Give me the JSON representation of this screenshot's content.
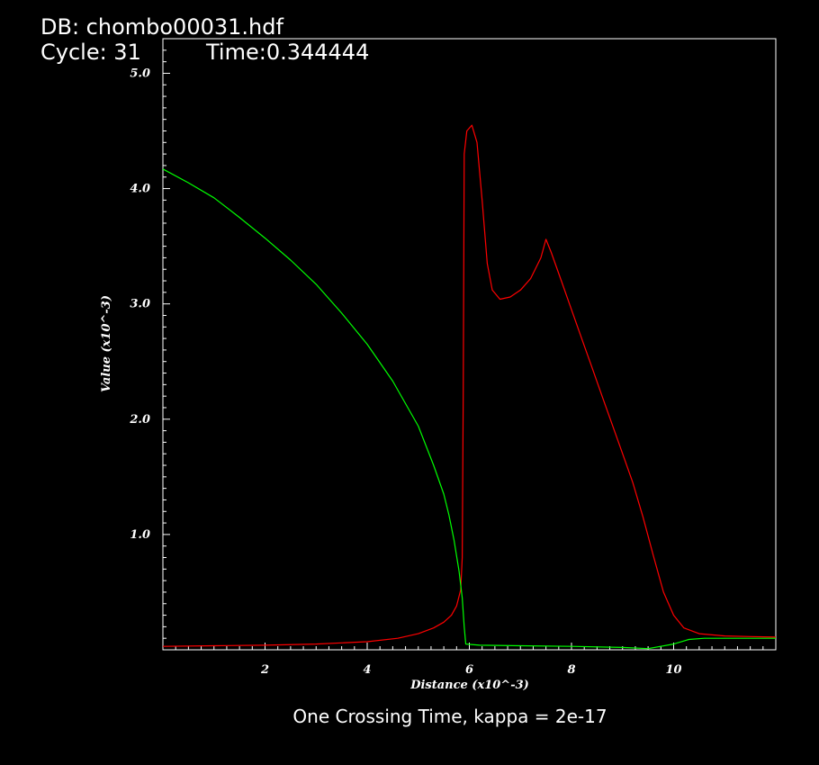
{
  "header": {
    "db_label": "DB: chombo00031.hdf",
    "cycle_label": "Cycle: 31",
    "time_label": "Time:0.344444"
  },
  "caption": "One Crossing Time, kappa = 2e-17",
  "colors": {
    "background": "#000000",
    "axes": "#ffffff",
    "series_red": "#ff0000",
    "series_green": "#00ff00"
  },
  "chart_data": {
    "type": "line",
    "title": "",
    "xlabel": "Distance (x10^-3)",
    "ylabel": "Value (x10^-3)",
    "xlim": [
      0,
      12
    ],
    "ylim": [
      0,
      5.3
    ],
    "x_ticks": [
      2,
      4,
      6,
      8,
      10
    ],
    "x_tick_labels": [
      "2",
      "4",
      "6",
      "8",
      "10"
    ],
    "y_ticks": [
      1.0,
      2.0,
      3.0,
      4.0,
      5.0
    ],
    "y_tick_labels": [
      "1.0",
      "2.0",
      "3.0",
      "4.0",
      "5.0"
    ],
    "grid": false,
    "legend": "none",
    "series": [
      {
        "color": "#ff0000",
        "points": [
          [
            0.0,
            0.03
          ],
          [
            1.0,
            0.035
          ],
          [
            2.0,
            0.04
          ],
          [
            3.0,
            0.05
          ],
          [
            4.0,
            0.07
          ],
          [
            4.6,
            0.1
          ],
          [
            5.0,
            0.14
          ],
          [
            5.3,
            0.19
          ],
          [
            5.5,
            0.24
          ],
          [
            5.65,
            0.3
          ],
          [
            5.75,
            0.38
          ],
          [
            5.83,
            0.52
          ],
          [
            5.86,
            0.8
          ],
          [
            5.88,
            2.2
          ],
          [
            5.9,
            4.3
          ],
          [
            5.95,
            4.5
          ],
          [
            6.05,
            4.55
          ],
          [
            6.15,
            4.4
          ],
          [
            6.25,
            3.9
          ],
          [
            6.35,
            3.35
          ],
          [
            6.45,
            3.12
          ],
          [
            6.6,
            3.04
          ],
          [
            6.8,
            3.06
          ],
          [
            7.0,
            3.12
          ],
          [
            7.2,
            3.22
          ],
          [
            7.4,
            3.4
          ],
          [
            7.5,
            3.56
          ],
          [
            7.6,
            3.45
          ],
          [
            7.8,
            3.2
          ],
          [
            8.0,
            2.95
          ],
          [
            8.2,
            2.7
          ],
          [
            8.4,
            2.45
          ],
          [
            8.6,
            2.2
          ],
          [
            8.8,
            1.95
          ],
          [
            9.0,
            1.7
          ],
          [
            9.2,
            1.45
          ],
          [
            9.4,
            1.15
          ],
          [
            9.6,
            0.82
          ],
          [
            9.8,
            0.5
          ],
          [
            10.0,
            0.3
          ],
          [
            10.2,
            0.19
          ],
          [
            10.5,
            0.14
          ],
          [
            11.0,
            0.12
          ],
          [
            11.5,
            0.115
          ],
          [
            12.0,
            0.11
          ]
        ]
      },
      {
        "color": "#00ff00",
        "points": [
          [
            0.0,
            4.17
          ],
          [
            0.5,
            4.05
          ],
          [
            1.0,
            3.92
          ],
          [
            1.5,
            3.75
          ],
          [
            2.0,
            3.57
          ],
          [
            2.5,
            3.38
          ],
          [
            3.0,
            3.17
          ],
          [
            3.5,
            2.92
          ],
          [
            4.0,
            2.65
          ],
          [
            4.5,
            2.33
          ],
          [
            5.0,
            1.94
          ],
          [
            5.3,
            1.6
          ],
          [
            5.5,
            1.35
          ],
          [
            5.6,
            1.17
          ],
          [
            5.7,
            0.95
          ],
          [
            5.8,
            0.68
          ],
          [
            5.86,
            0.45
          ],
          [
            5.9,
            0.2
          ],
          [
            5.93,
            0.05
          ],
          [
            6.2,
            0.04
          ],
          [
            7.0,
            0.035
          ],
          [
            8.0,
            0.03
          ],
          [
            9.0,
            0.02
          ],
          [
            9.5,
            0.01
          ],
          [
            10.0,
            0.05
          ],
          [
            10.3,
            0.09
          ],
          [
            10.6,
            0.1
          ],
          [
            11.0,
            0.1
          ],
          [
            12.0,
            0.1
          ]
        ]
      }
    ]
  }
}
